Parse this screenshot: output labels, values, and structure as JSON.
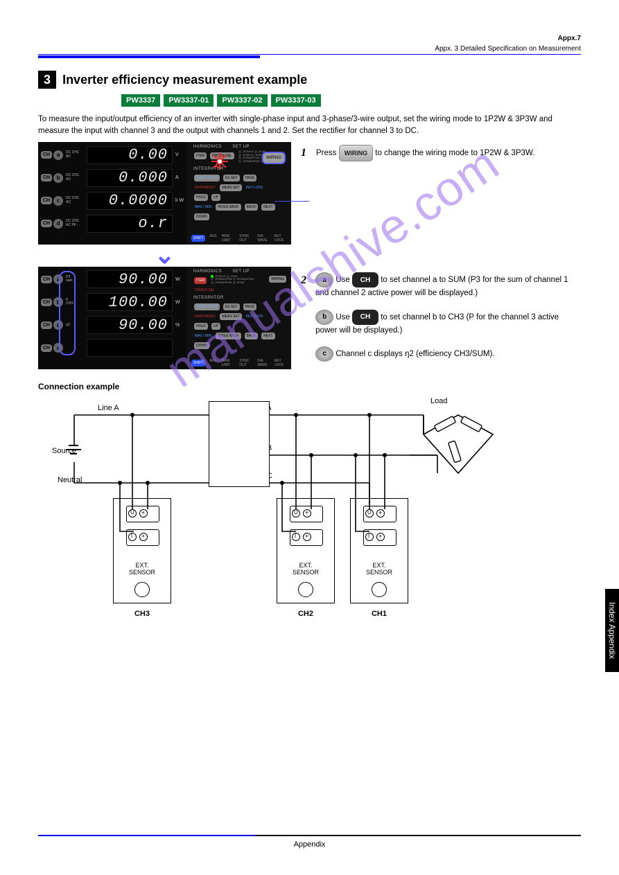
{
  "page": {
    "number_left": "",
    "number_right": "Appx.7",
    "header_right_title": "Appx. 3 Detailed Specification on Measurement"
  },
  "section": {
    "num": "3",
    "title": "Inverter efficiency measurement example"
  },
  "badges": [
    "PW3337",
    "PW3337-01",
    "PW3337-02",
    "PW3337-03"
  ],
  "intro": "To measure the input/output efficiency of an inverter with single-phase input and 3-phase/3-wire output, set the wiring mode to 1P2W & 3P3W and measure the input with channel 3 and the output with channels 1 and 2. Set the rectifier for channel 3 to DC.",
  "panel1": {
    "rows": [
      {
        "ch": "CH",
        "k": "a",
        "l1": "DC CH1",
        "l2": "AC",
        "val": "0.00",
        "u": "V"
      },
      {
        "ch": "CH",
        "k": "b",
        "l1": "DC CH1",
        "l2": "AC",
        "val": "0.000",
        "u": "A"
      },
      {
        "ch": "CH",
        "k": "c",
        "l1": "DC CH1",
        "l2": "AC",
        "val": "0.0000",
        "u": "k W"
      },
      {
        "ch": "CH",
        "k": "d",
        "l1": "DC CH1",
        "l2": "AC  PF",
        "val": "o.r",
        "u": ""
      }
    ],
    "right": {
      "grp1": "HARMONICS",
      "grp1b": "SET UP",
      "btns1": [
        "ITEM",
        "ORDER S&L"
      ],
      "modes": [
        "1P2W×3",
        "1P3W",
        "3V3A",
        "1P3W&1P2W",
        "3P3W",
        "2P2W&1P2W",
        "3P4W",
        "1P2W&3P3W"
      ],
      "wiring": "WIRING",
      "grp2": "INTEGRATOR",
      "btns2": [
        "START STOP",
        "EX.SET",
        "DATA RESET",
        "HOLD",
        "MEAS SET",
        "INTEG BACK",
        "PAGE",
        "KEY LOCK",
        "UP",
        "BACK",
        "NEXT",
        "DOWN"
      ],
      "max": "MAX / MIN",
      "bottom": [
        "AVG",
        "HRM LIMIT",
        "SYNC OUT",
        "D/A WAVE",
        "KEY LOCK"
      ],
      "shift": "SHIFT"
    }
  },
  "panel2": {
    "rows": [
      {
        "ch": "CH",
        "k": "a",
        "l1": "P3",
        "l2": "sum",
        "val": "90.00",
        "u": "W"
      },
      {
        "ch": "CH",
        "k": "b",
        "l1": "P",
        "l2": "CH3",
        "val": "100.00",
        "u": "W"
      },
      {
        "ch": "CH",
        "k": "c",
        "l1": "η2",
        "l2": "",
        "val": "90.00",
        "u": "%"
      },
      {
        "ch": "CH",
        "k": "d",
        "l1": "",
        "l2": "",
        "val": "",
        "u": ""
      }
    ]
  },
  "steps": {
    "s1": {
      "n": "1",
      "text_a": "Press ",
      "btn": "WIRING",
      "text_b": " to change the wiring mode to 1P2W & 3P3W."
    },
    "s2": {
      "n": "2",
      "a_pill": "a",
      "a_text_a": "Use ",
      "a_btn": "CH",
      "a_text_b": " to set channel a to SUM (P3 for the sum of channel 1 and channel 2 active power will be displayed.)",
      "b_pill": "b",
      "b_text_a": "Use ",
      "b_btn": "CH",
      "b_text_b": " to set channel b to CH3 (P for the channel 3 active power will be displayed.)",
      "c_pill": "c",
      "c_text": "Channel c displays η2 (efficiency CH3/SUM)."
    }
  },
  "example": {
    "title": "Connection example",
    "lineA": "Line A",
    "lineB": "Line B",
    "lineC": "Line C",
    "source": "Source",
    "neutral": "Neutral",
    "load": "Load",
    "ext": "EXT.\nSENSOR",
    "ch1": "CH1",
    "ch2": "CH2",
    "ch3": "CH3",
    "u": "U",
    "i": "I"
  },
  "watermark": "manualshive.com",
  "sidebar": "Index Appendix",
  "footer": "Appendix"
}
